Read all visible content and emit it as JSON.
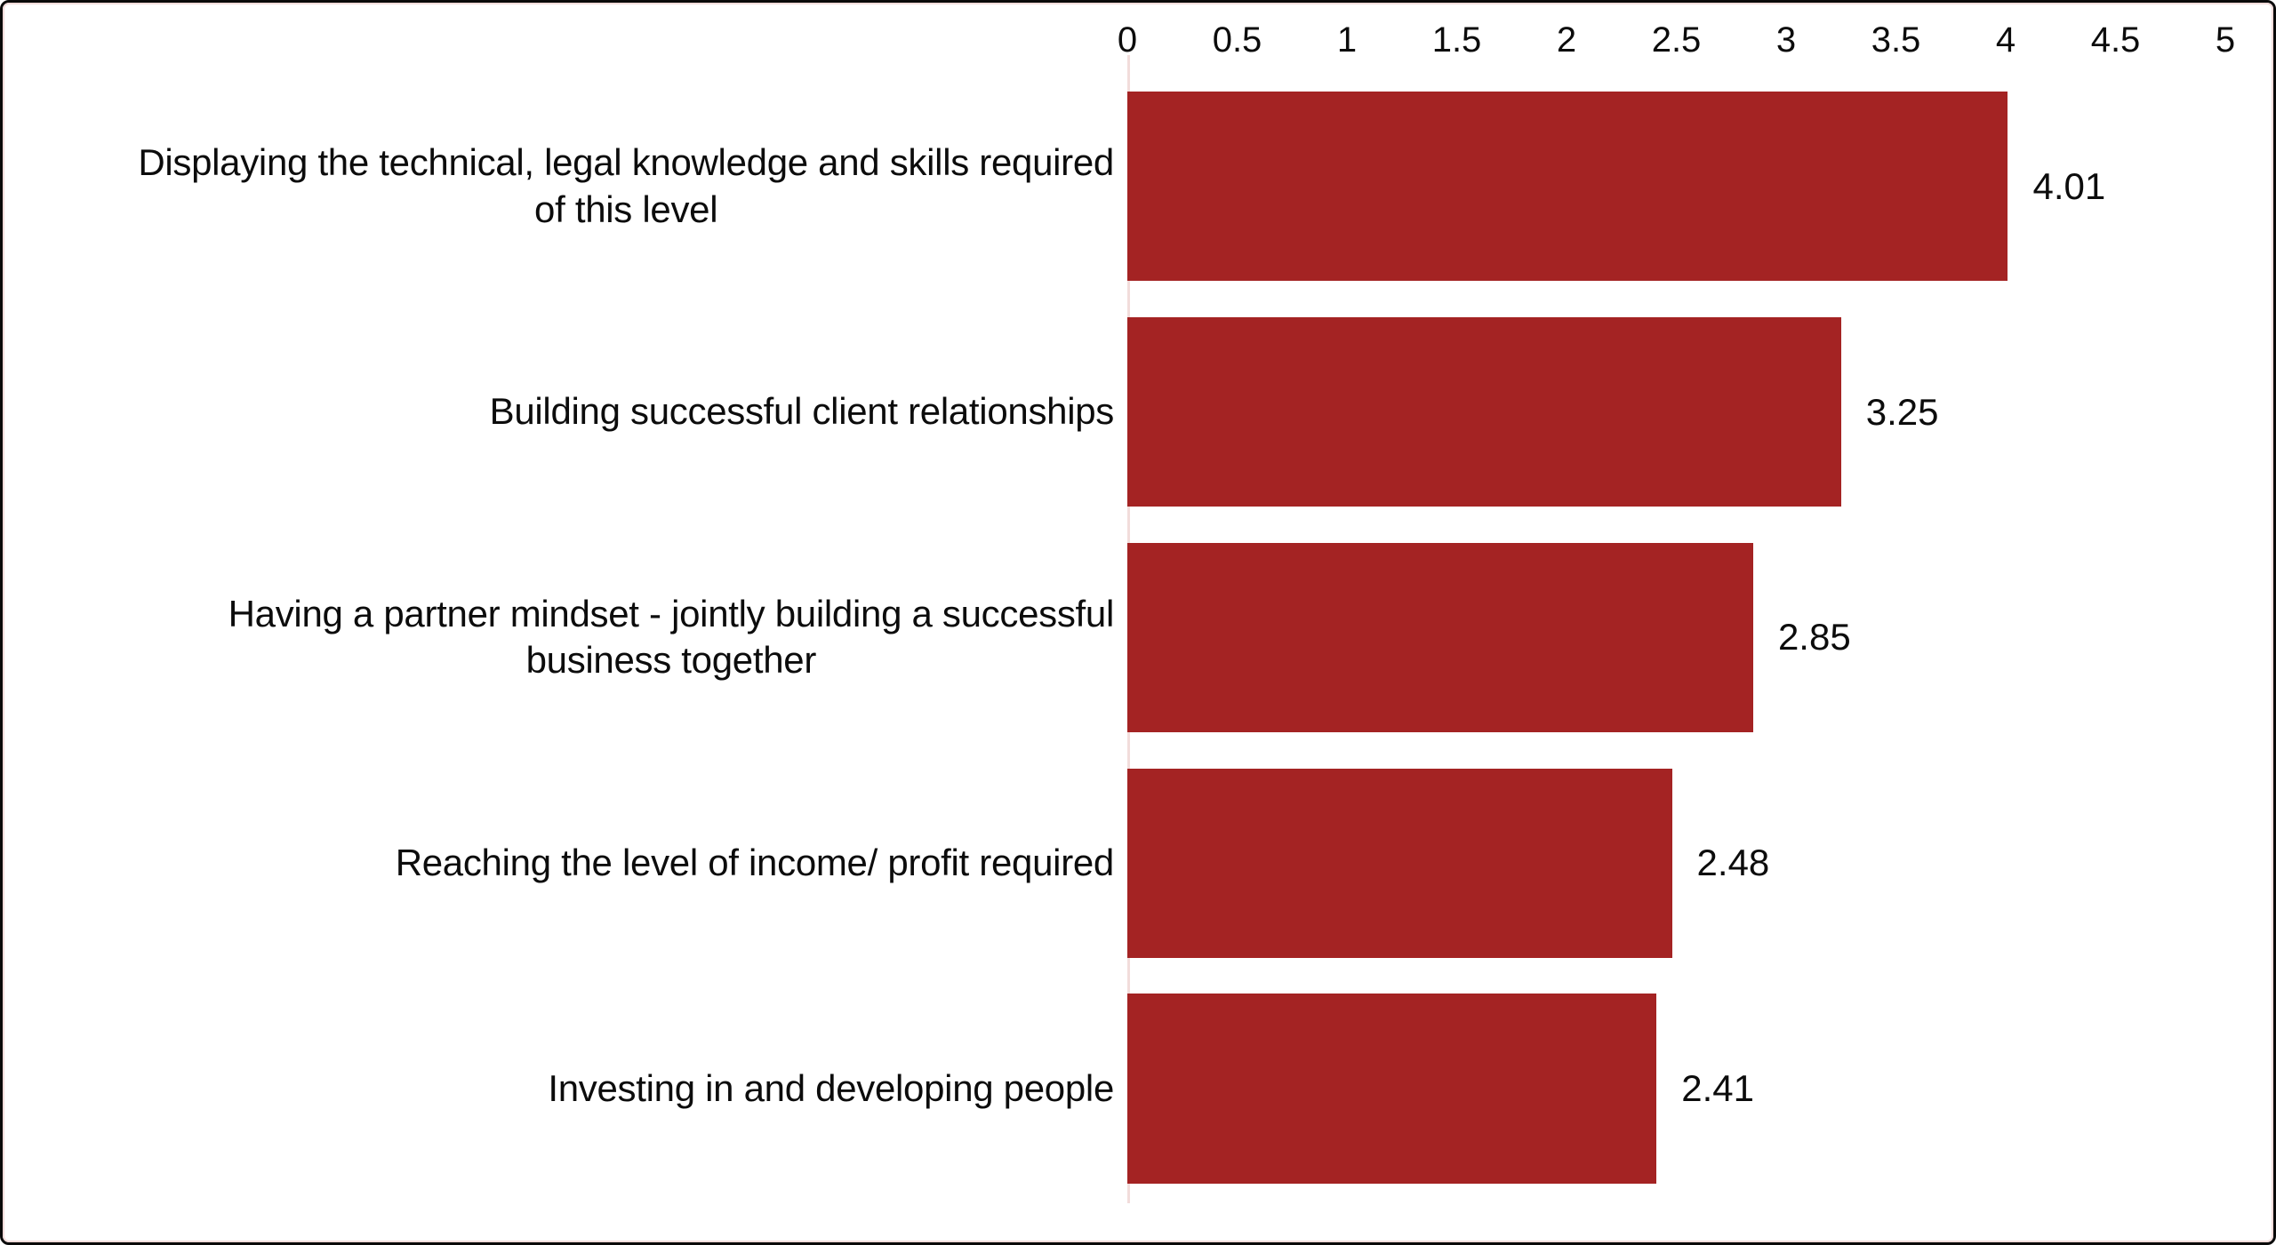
{
  "frame": {
    "outer_border_color": "#0a0a0a",
    "inner_border_color": "#f2dcdb",
    "background": "#ffffff"
  },
  "chart_data": {
    "type": "bar",
    "orientation": "horizontal",
    "title": "",
    "xlabel": "",
    "ylabel": "",
    "axis_position": "top",
    "grid": false,
    "legend": null,
    "xlim": [
      0,
      5
    ],
    "x_ticks": [
      0,
      0.5,
      1,
      1.5,
      2,
      2.5,
      3,
      3.5,
      4,
      4.5,
      5
    ],
    "x_tick_labels": [
      "0",
      "0.5",
      "1",
      "1.5",
      "2",
      "2.5",
      "3",
      "3.5",
      "4",
      "4.5",
      "5"
    ],
    "categories": [
      "Displaying the technical, legal knowledge and skills required\nof this level",
      "Building successful client relationships",
      "Having a partner mindset - jointly building a successful\nbusiness together",
      "Reaching the level of income/ profit required",
      "Investing in and developing people"
    ],
    "values": [
      4.01,
      3.25,
      2.85,
      2.48,
      2.41
    ],
    "value_labels": [
      "4.01",
      "3.25",
      "2.85",
      "2.48",
      "2.41"
    ],
    "bar_color": "#a42323",
    "axis_line_color": "#f2dcdb",
    "text_color": "#0c0c0c"
  }
}
